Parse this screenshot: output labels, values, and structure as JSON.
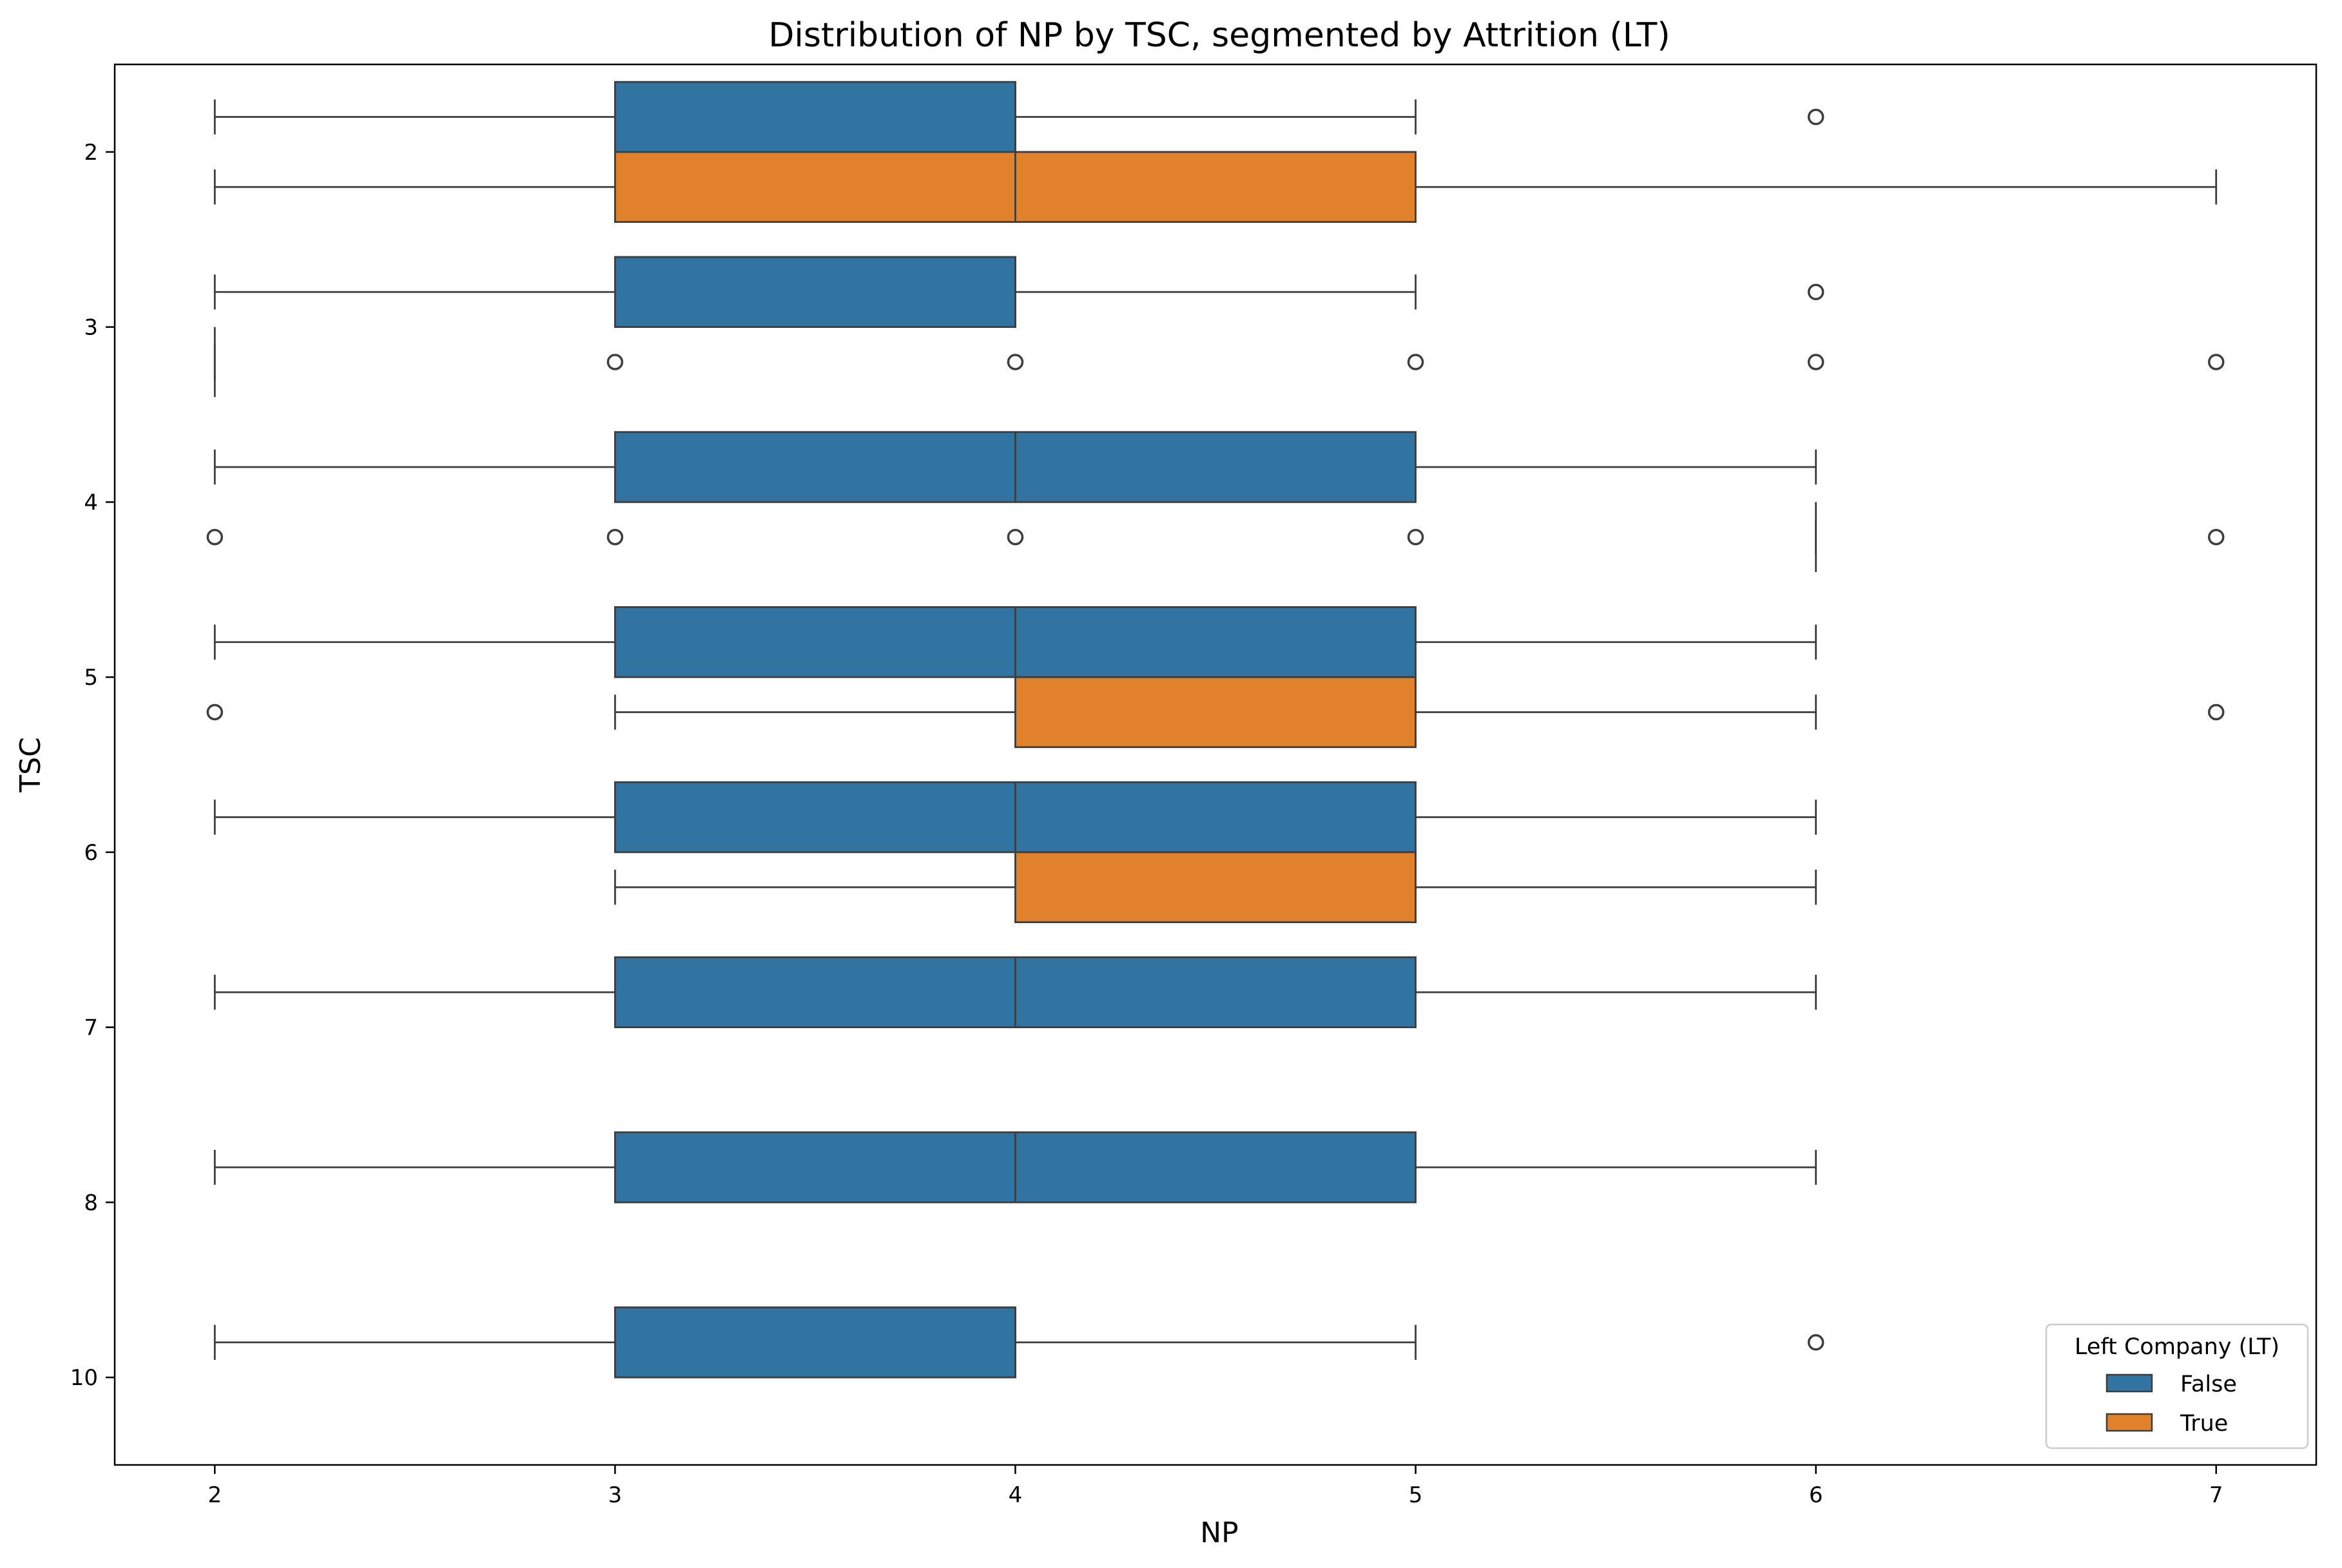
{
  "chart_data": {
    "type": "boxplot",
    "orientation": "horizontal",
    "title": "Distribution of NP by TSC, segmented by Attrition (LT)",
    "xlabel": "NP",
    "ylabel": "TSC",
    "xlim": [
      1.75,
      7.25
    ],
    "xticks": [
      2,
      3,
      4,
      5,
      6,
      7
    ],
    "categories": [
      "2",
      "3",
      "4",
      "5",
      "6",
      "7",
      "8",
      "10"
    ],
    "legend": {
      "title": "Left Company (LT)",
      "position": "lower-right",
      "entries": [
        {
          "label": "False",
          "color": "#3274a1"
        },
        {
          "label": "True",
          "color": "#e1812c"
        }
      ]
    },
    "colors": {
      "False": "#3274a1",
      "True": "#e1812c",
      "line": "#3d3d3d"
    },
    "series": [
      {
        "name": "False",
        "boxes": [
          {
            "category": "2",
            "whislo": 2,
            "q1": 3,
            "med": 4,
            "q3": 4,
            "whishi": 5,
            "fliers": [
              6
            ]
          },
          {
            "category": "3",
            "whislo": 2,
            "q1": 3,
            "med": 4,
            "q3": 4,
            "whishi": 5,
            "fliers": [
              6
            ]
          },
          {
            "category": "4",
            "whislo": 2,
            "q1": 3,
            "med": 4,
            "q3": 5,
            "whishi": 6,
            "fliers": []
          },
          {
            "category": "5",
            "whislo": 2,
            "q1": 3,
            "med": 4,
            "q3": 5,
            "whishi": 6,
            "fliers": []
          },
          {
            "category": "6",
            "whislo": 2,
            "q1": 3,
            "med": 4,
            "q3": 5,
            "whishi": 6,
            "fliers": []
          },
          {
            "category": "7",
            "whislo": 2,
            "q1": 3,
            "med": 4,
            "q3": 5,
            "whishi": 6,
            "fliers": []
          },
          {
            "category": "8",
            "whislo": 2,
            "q1": 3,
            "med": 4,
            "q3": 5,
            "whishi": 6,
            "fliers": []
          },
          {
            "category": "10",
            "whislo": 2,
            "q1": 3,
            "med": 4,
            "q3": 4,
            "whishi": 5,
            "fliers": [
              6
            ]
          }
        ]
      },
      {
        "name": "True",
        "boxes": [
          {
            "category": "2",
            "whislo": 2,
            "q1": 3,
            "med": 4,
            "q3": 5,
            "whishi": 7,
            "fliers": []
          },
          {
            "category": "3",
            "whislo": 2,
            "q1": 2,
            "med": 2,
            "q3": 2,
            "whishi": 2,
            "fliers": [
              3,
              4,
              5,
              6,
              7
            ]
          },
          {
            "category": "4",
            "whislo": 6,
            "q1": 6,
            "med": 6,
            "q3": 6,
            "whishi": 6,
            "fliers": [
              2,
              3,
              4,
              5,
              7
            ]
          },
          {
            "category": "5",
            "whislo": 3,
            "q1": 4,
            "med": 5,
            "q3": 5,
            "whishi": 6,
            "fliers": [
              2,
              7
            ]
          },
          {
            "category": "6",
            "whislo": 3,
            "q1": 4,
            "med": 5,
            "q3": 5,
            "whishi": 6,
            "fliers": []
          }
        ]
      }
    ]
  }
}
